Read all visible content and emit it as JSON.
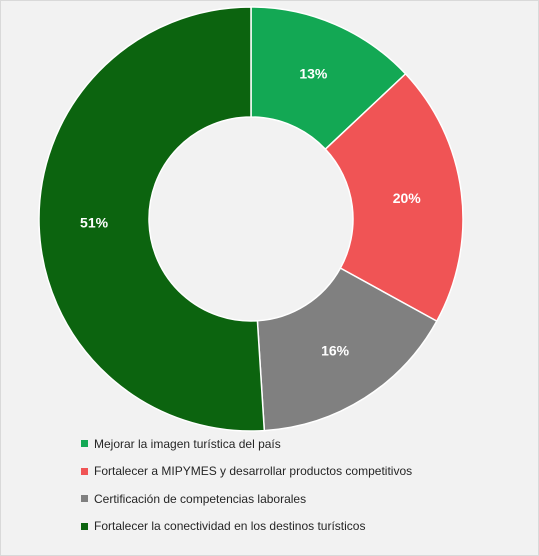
{
  "chart_data": {
    "type": "pie",
    "variant": "donut",
    "title": "",
    "categories": [
      "Mejorar la imagen turística del país",
      "Fortalecer a MIPYMES y desarrollar productos competitivos",
      "Certificación de competencias laborales",
      "Fortalecer la conectividad en los destinos turísticos"
    ],
    "values": [
      13,
      20,
      16,
      51
    ],
    "labels": [
      "13%",
      "20%",
      "16%",
      "51%"
    ],
    "colors": [
      "#13a854",
      "#f05455",
      "#808080",
      "#0c640f"
    ],
    "legend_position": "bottom",
    "start_angle": "12 o'clock, clockwise"
  }
}
